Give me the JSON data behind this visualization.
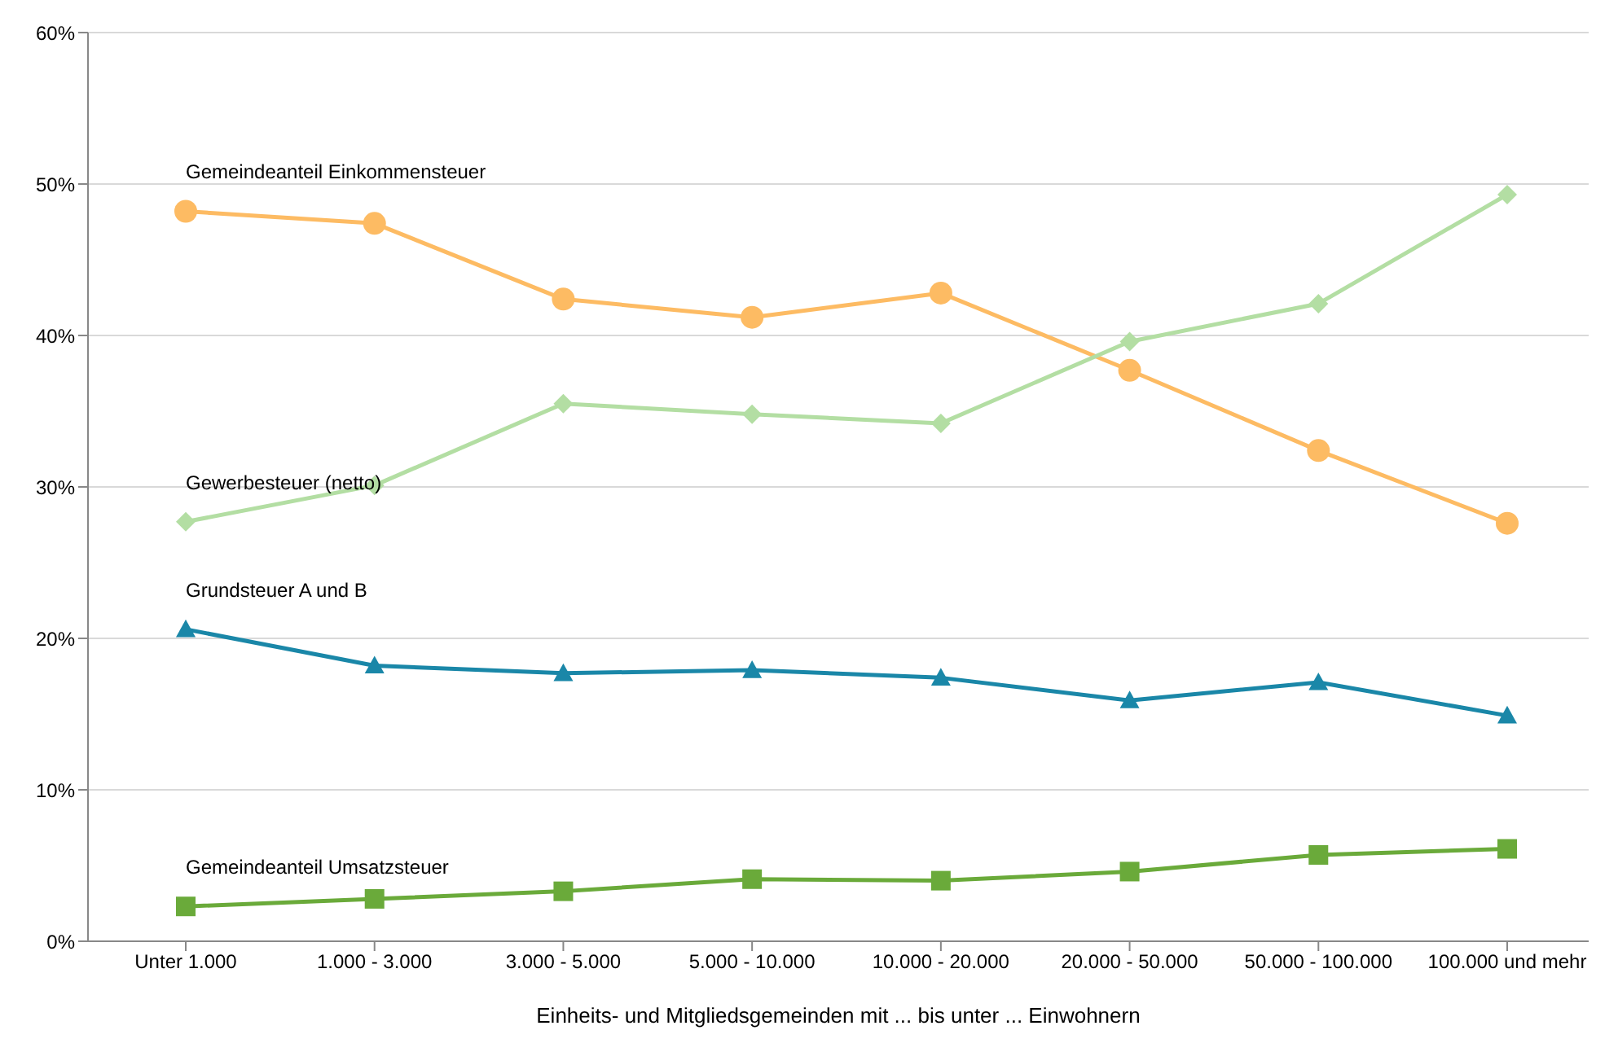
{
  "chart_data": {
    "type": "line",
    "xlabel": "Einheits- und Mitgliedsgemeinden mit ... bis unter ... Einwohnern",
    "categories": [
      "Unter 1.000",
      "1.000 - 3.000",
      "3.000 - 5.000",
      "5.000 - 10.000",
      "10.000 - 20.000",
      "20.000 - 50.000",
      "50.000 - 100.000",
      "100.000 und mehr"
    ],
    "ylim": [
      0,
      60
    ],
    "yticks": [
      {
        "value": 0,
        "label": "0%"
      },
      {
        "value": 10,
        "label": "10%"
      },
      {
        "value": 20,
        "label": "20%"
      },
      {
        "value": 30,
        "label": "30%"
      },
      {
        "value": 40,
        "label": "40%"
      },
      {
        "value": 50,
        "label": "50%"
      },
      {
        "value": 60,
        "label": "60%"
      }
    ],
    "grid": "y",
    "series": [
      {
        "name": "Gemeindeanteil Einkommensteuer",
        "color": "#fdbb63",
        "marker": "circle",
        "values": [
          48.2,
          47.4,
          42.4,
          41.2,
          42.8,
          37.7,
          32.4,
          27.6
        ]
      },
      {
        "name": "Gewerbesteuer (netto)",
        "color": "#b3dea3",
        "marker": "diamond",
        "values": [
          27.7,
          30.1,
          35.5,
          34.8,
          34.2,
          39.6,
          42.1,
          49.3
        ]
      },
      {
        "name": "Grundsteuer A und B",
        "color": "#1a87a8",
        "marker": "triangle",
        "values": [
          20.6,
          18.2,
          17.7,
          17.9,
          17.4,
          15.9,
          17.1,
          14.9
        ]
      },
      {
        "name": "Gemeindeanteil Umsatzsteuer",
        "color": "#6aaa3a",
        "marker": "square",
        "values": [
          2.3,
          2.8,
          3.3,
          4.1,
          4.0,
          4.6,
          5.7,
          6.1
        ]
      }
    ]
  }
}
